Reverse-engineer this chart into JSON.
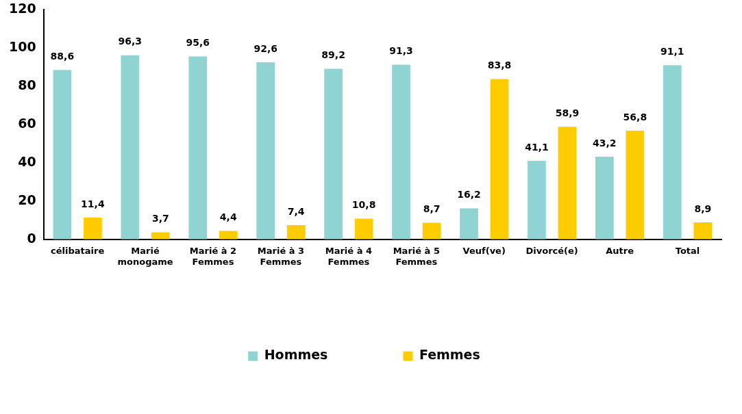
{
  "chart_data": {
    "type": "bar",
    "categories": [
      "célibataire",
      "Marié monogame",
      "Marié à 2 Femmes",
      "Marié à 3 Femmes",
      "Marié à 4 Femmes",
      "Marié à 5 Femmes",
      "Veuf(ve)",
      "Divorcé(e)",
      "Autre",
      "Total"
    ],
    "series": [
      {
        "name": "Hommes",
        "color": "#8fd3d3",
        "values": [
          88.6,
          96.3,
          95.6,
          92.6,
          89.2,
          91.3,
          16.2,
          41.1,
          43.2,
          91.1
        ],
        "value_labels": [
          "88,6",
          "96,3",
          "95,6",
          "92,6",
          "89,2",
          "91,3",
          "16,2",
          "41,1",
          "43,2",
          "91,1"
        ]
      },
      {
        "name": "Femmes",
        "color": "#ffcc00",
        "values": [
          11.4,
          3.7,
          4.4,
          7.4,
          10.8,
          8.7,
          83.8,
          58.9,
          56.8,
          8.9
        ],
        "value_labels": [
          "11,4",
          "3,7",
          "4,4",
          "7,4",
          "10,8",
          "8,7",
          "83,8",
          "58,9",
          "56,8",
          "8,9"
        ]
      }
    ],
    "ylim": [
      0,
      120
    ],
    "yticks": [
      0,
      20,
      40,
      60,
      80,
      100,
      120
    ],
    "grid": false,
    "legend": "bottom"
  }
}
